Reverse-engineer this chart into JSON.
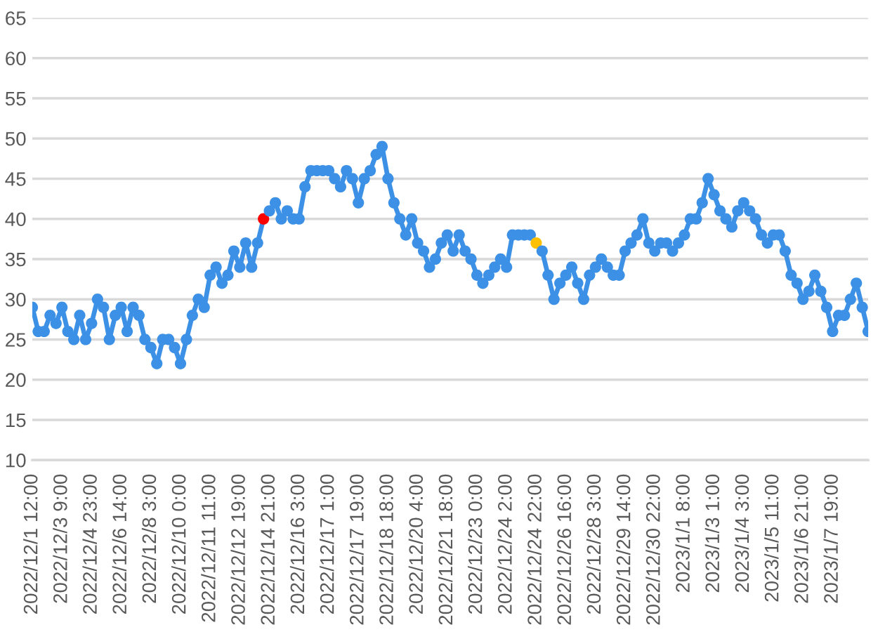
{
  "chart_data": {
    "type": "line",
    "color": "#3c91e6",
    "marker": "circle",
    "grid": "y",
    "ylim": [
      10,
      65
    ],
    "yticks": [
      10,
      15,
      20,
      25,
      30,
      35,
      40,
      45,
      50,
      55,
      60,
      65
    ],
    "categories": [
      "2022/12/1 12:00",
      null,
      null,
      null,
      null,
      "2022/12/3 9:00",
      null,
      null,
      null,
      null,
      "2022/12/4 23:00",
      null,
      null,
      null,
      null,
      "2022/12/6 14:00",
      null,
      null,
      null,
      null,
      "2022/12/8 3:00",
      null,
      null,
      null,
      null,
      "2022/12/10 0:00",
      null,
      null,
      null,
      null,
      "2022/12/11 11:00",
      null,
      null,
      null,
      null,
      "2022/12/12 19:00",
      null,
      null,
      null,
      null,
      "2022/12/14 21:00",
      null,
      null,
      null,
      null,
      "2022/12/16 3:00",
      null,
      null,
      null,
      null,
      "2022/12/17 1:00",
      null,
      null,
      null,
      null,
      "2022/12/17 19:00",
      null,
      null,
      null,
      null,
      "2022/12/18 18:00",
      null,
      null,
      null,
      null,
      "2022/12/20 4:00",
      null,
      null,
      null,
      null,
      "2022/12/21 18:00",
      null,
      null,
      null,
      null,
      "2022/12/23 0:00",
      null,
      null,
      null,
      null,
      "2022/12/24 2:00",
      null,
      null,
      null,
      null,
      "2022/12/24 22:00",
      null,
      null,
      null,
      null,
      "2022/12/26 16:00",
      null,
      null,
      null,
      null,
      "2022/12/28 3:00",
      null,
      null,
      null,
      null,
      "2022/12/29 14:00",
      null,
      null,
      null,
      null,
      "2022/12/30 22:00",
      null,
      null,
      null,
      null,
      "2023/1/1 8:00",
      null,
      null,
      null,
      null,
      "2023/1/3 1:00",
      null,
      null,
      null,
      null,
      "2023/1/4 3:00",
      null,
      null,
      null,
      null,
      "2023/1/5 11:00",
      null,
      null,
      null,
      null,
      "2023/1/6 21:00",
      null,
      null,
      null,
      null,
      "2023/1/7 19:00",
      null,
      null,
      null,
      null,
      null,
      null
    ],
    "values": [
      29,
      26,
      26,
      28,
      27,
      29,
      26,
      25,
      28,
      25,
      27,
      30,
      29,
      25,
      28,
      29,
      26,
      29,
      28,
      25,
      24,
      22,
      25,
      25,
      24,
      22,
      25,
      28,
      30,
      29,
      33,
      34,
      32,
      33,
      36,
      34,
      37,
      34,
      37,
      40,
      41,
      42,
      40,
      41,
      40,
      40,
      44,
      46,
      46,
      46,
      46,
      45,
      44,
      46,
      45,
      42,
      45,
      46,
      48,
      49,
      45,
      42,
      40,
      38,
      40,
      37,
      36,
      34,
      35,
      37,
      38,
      36,
      38,
      36,
      35,
      33,
      32,
      33,
      34,
      35,
      34,
      38,
      38,
      38,
      38,
      37,
      36,
      33,
      30,
      32,
      33,
      34,
      32,
      30,
      33,
      34,
      35,
      34,
      33,
      33,
      36,
      37,
      38,
      40,
      37,
      36,
      37,
      37,
      36,
      37,
      38,
      40,
      40,
      42,
      45,
      43,
      41,
      40,
      39,
      41,
      42,
      41,
      40,
      38,
      37,
      38,
      38,
      36,
      33,
      32,
      30,
      31,
      33,
      31,
      29,
      26,
      28,
      28,
      30,
      32,
      29,
      26
    ],
    "colors": [
      "#3c91e6",
      "#3c91e6",
      "#3c91e6",
      "#3c91e6",
      "#3c91e6",
      "#3c91e6",
      "#3c91e6",
      "#3c91e6",
      "#3c91e6",
      "#3c91e6",
      "#3c91e6",
      "#3c91e6",
      "#3c91e6",
      "#3c91e6",
      "#3c91e6",
      "#3c91e6",
      "#3c91e6",
      "#3c91e6",
      "#3c91e6",
      "#3c91e6",
      "#3c91e6",
      "#3c91e6",
      "#3c91e6",
      "#3c91e6",
      "#3c91e6",
      "#3c91e6",
      "#3c91e6",
      "#3c91e6",
      "#3c91e6",
      "#3c91e6",
      "#3c91e6",
      "#3c91e6",
      "#3c91e6",
      "#3c91e6",
      "#3c91e6",
      "#3c91e6",
      "#3c91e6",
      "#3c91e6",
      "#3c91e6",
      "#ff0000",
      "#3c91e6",
      "#3c91e6",
      "#3c91e6",
      "#3c91e6",
      "#3c91e6",
      "#3c91e6",
      "#3c91e6",
      "#3c91e6",
      "#3c91e6",
      "#3c91e6",
      "#3c91e6",
      "#3c91e6",
      "#3c91e6",
      "#3c91e6",
      "#3c91e6",
      "#3c91e6",
      "#3c91e6",
      "#3c91e6",
      "#3c91e6",
      "#3c91e6",
      "#3c91e6",
      "#3c91e6",
      "#3c91e6",
      "#3c91e6",
      "#3c91e6",
      "#3c91e6",
      "#3c91e6",
      "#3c91e6",
      "#3c91e6",
      "#3c91e6",
      "#3c91e6",
      "#3c91e6",
      "#3c91e6",
      "#3c91e6",
      "#3c91e6",
      "#3c91e6",
      "#3c91e6",
      "#3c91e6",
      "#3c91e6",
      "#3c91e6",
      "#3c91e6",
      "#3c91e6",
      "#3c91e6",
      "#3c91e6",
      "#3c91e6",
      "#ffc000",
      "#3c91e6",
      "#3c91e6",
      "#3c91e6",
      "#3c91e6",
      "#3c91e6",
      "#3c91e6",
      "#3c91e6",
      "#3c91e6",
      "#3c91e6",
      "#3c91e6",
      "#3c91e6",
      "#3c91e6",
      "#3c91e6",
      "#3c91e6",
      "#3c91e6",
      "#3c91e6",
      "#3c91e6",
      "#3c91e6",
      "#3c91e6",
      "#3c91e6",
      "#3c91e6",
      "#3c91e6",
      "#3c91e6",
      "#3c91e6",
      "#3c91e6",
      "#3c91e6",
      "#3c91e6",
      "#3c91e6",
      "#3c91e6",
      "#3c91e6",
      "#3c91e6",
      "#3c91e6",
      "#3c91e6",
      "#3c91e6",
      "#3c91e6",
      "#3c91e6",
      "#3c91e6",
      "#3c91e6",
      "#3c91e6",
      "#3c91e6",
      "#3c91e6",
      "#3c91e6",
      "#3c91e6",
      "#3c91e6",
      "#3c91e6",
      "#3c91e6",
      "#3c91e6",
      "#3c91e6",
      "#3c91e6",
      "#3c91e6",
      "#3c91e6",
      "#3c91e6",
      "#3c91e6",
      "#3c91e6",
      "#3c91e6",
      "#3c91e6"
    ]
  }
}
